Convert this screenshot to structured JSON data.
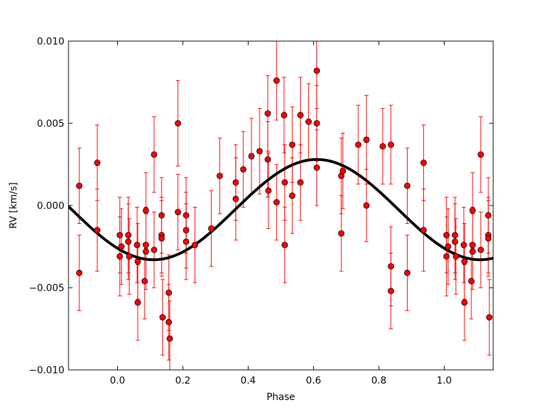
{
  "chart_data": {
    "type": "scatter",
    "title": "",
    "xlabel": "Phase",
    "ylabel": "RV [km/s]",
    "xlim": [
      -0.15,
      1.15
    ],
    "ylim": [
      -0.01,
      0.01
    ],
    "xticks": [
      0.0,
      0.2,
      0.4,
      0.6,
      0.8,
      1.0
    ],
    "xtick_labels": [
      "0.0",
      "0.2",
      "0.4",
      "0.6",
      "0.8",
      "1.0"
    ],
    "yticks": [
      -0.01,
      -0.005,
      0.0,
      0.005,
      0.01
    ],
    "ytick_labels": [
      "−0.010",
      "−0.005",
      "0.000",
      "0.005",
      "0.010"
    ],
    "grid": false,
    "colors": {
      "points": "#ff0000",
      "errorbars": "#ff0000",
      "model": "#000000"
    },
    "model_curve": {
      "description": "sinusoidal fit",
      "offset": -0.00025,
      "amplitude": 0.00305,
      "peak_phase": 0.61
    },
    "points": [
      {
        "x": -0.117,
        "y": 0.0012,
        "err": 0.0023
      },
      {
        "x": -0.117,
        "y": -0.0041,
        "err": 0.0023
      },
      {
        "x": -0.062,
        "y": 0.0026,
        "err": 0.0023
      },
      {
        "x": -0.062,
        "y": -0.0015,
        "err": 0.0025
      },
      {
        "x": 0.007,
        "y": -0.0018,
        "err": 0.0023
      },
      {
        "x": 0.007,
        "y": -0.0031,
        "err": 0.0024
      },
      {
        "x": 0.012,
        "y": -0.0025,
        "err": 0.0023
      },
      {
        "x": 0.033,
        "y": -0.0018,
        "err": 0.0023
      },
      {
        "x": 0.033,
        "y": -0.0022,
        "err": 0.0023
      },
      {
        "x": 0.036,
        "y": -0.0031,
        "err": 0.0023
      },
      {
        "x": 0.06,
        "y": -0.0024,
        "err": 0.0023
      },
      {
        "x": 0.062,
        "y": -0.0034,
        "err": 0.0023
      },
      {
        "x": 0.062,
        "y": -0.0059,
        "err": 0.0023
      },
      {
        "x": 0.083,
        "y": -0.0046,
        "err": 0.0023
      },
      {
        "x": 0.087,
        "y": -0.0003,
        "err": 0.0023
      },
      {
        "x": 0.087,
        "y": -0.0024,
        "err": 0.0023
      },
      {
        "x": 0.087,
        "y": -0.0028,
        "err": 0.0023
      },
      {
        "x": 0.112,
        "y": 0.0031,
        "err": 0.0023
      },
      {
        "x": 0.112,
        "y": -0.0027,
        "err": 0.0023
      },
      {
        "x": 0.135,
        "y": -0.0006,
        "err": 0.0023
      },
      {
        "x": 0.135,
        "y": -0.0018,
        "err": 0.0023
      },
      {
        "x": 0.135,
        "y": -0.002,
        "err": 0.0023
      },
      {
        "x": 0.138,
        "y": -0.0068,
        "err": 0.0023
      },
      {
        "x": 0.157,
        "y": -0.0053,
        "err": 0.0023
      },
      {
        "x": 0.157,
        "y": -0.0071,
        "err": 0.0023
      },
      {
        "x": 0.16,
        "y": -0.0081,
        "err": 0.0023
      },
      {
        "x": 0.185,
        "y": 0.005,
        "err": 0.0026
      },
      {
        "x": 0.185,
        "y": -0.0004,
        "err": 0.0023
      },
      {
        "x": 0.21,
        "y": -0.0006,
        "err": 0.0023
      },
      {
        "x": 0.21,
        "y": -0.0015,
        "err": 0.0023
      },
      {
        "x": 0.21,
        "y": -0.0022,
        "err": 0.0023
      },
      {
        "x": 0.237,
        "y": -0.0024,
        "err": 0.0023
      },
      {
        "x": 0.287,
        "y": -0.0014,
        "err": 0.0023
      },
      {
        "x": 0.313,
        "y": 0.0018,
        "err": 0.0023
      },
      {
        "x": 0.362,
        "y": 0.0014,
        "err": 0.0023
      },
      {
        "x": 0.362,
        "y": 0.0004,
        "err": 0.0025
      },
      {
        "x": 0.385,
        "y": 0.0022,
        "err": 0.0023
      },
      {
        "x": 0.41,
        "y": 0.003,
        "err": 0.0023
      },
      {
        "x": 0.435,
        "y": 0.0033,
        "err": 0.0026
      },
      {
        "x": 0.46,
        "y": 0.0056,
        "err": 0.0023
      },
      {
        "x": 0.46,
        "y": 0.0028,
        "err": 0.0023
      },
      {
        "x": 0.462,
        "y": 0.0009,
        "err": 0.0023
      },
      {
        "x": 0.487,
        "y": 0.0076,
        "err": 0.0024
      },
      {
        "x": 0.487,
        "y": 0.0002,
        "err": 0.0023
      },
      {
        "x": 0.51,
        "y": 0.0055,
        "err": 0.0023
      },
      {
        "x": 0.512,
        "y": 0.0014,
        "err": 0.0023
      },
      {
        "x": 0.512,
        "y": -0.0024,
        "err": 0.0023
      },
      {
        "x": 0.535,
        "y": 0.0037,
        "err": 0.0023
      },
      {
        "x": 0.535,
        "y": 0.0006,
        "err": 0.0023
      },
      {
        "x": 0.56,
        "y": 0.0055,
        "err": 0.0023
      },
      {
        "x": 0.56,
        "y": 0.0014,
        "err": 0.0023
      },
      {
        "x": 0.585,
        "y": 0.0051,
        "err": 0.0023
      },
      {
        "x": 0.61,
        "y": 0.0082,
        "err": 0.0023
      },
      {
        "x": 0.61,
        "y": 0.005,
        "err": 0.0023
      },
      {
        "x": 0.61,
        "y": 0.0023,
        "err": 0.0023
      },
      {
        "x": 0.685,
        "y": 0.0018,
        "err": 0.0023
      },
      {
        "x": 0.685,
        "y": -0.0017,
        "err": 0.0023
      },
      {
        "x": 0.69,
        "y": 0.0021,
        "err": 0.0023
      },
      {
        "x": 0.737,
        "y": 0.0037,
        "err": 0.0024
      },
      {
        "x": 0.762,
        "y": 0.004,
        "err": 0.0027
      },
      {
        "x": 0.762,
        "y": 0.0,
        "err": 0.0022
      },
      {
        "x": 0.812,
        "y": 0.0036,
        "err": 0.0023
      },
      {
        "x": 0.837,
        "y": 0.0037,
        "err": 0.0024
      },
      {
        "x": 0.837,
        "y": -0.0037,
        "err": 0.0024
      },
      {
        "x": 0.837,
        "y": -0.0052,
        "err": 0.0023
      },
      {
        "x": 0.887,
        "y": 0.0012,
        "err": 0.0023
      },
      {
        "x": 0.887,
        "y": -0.0041,
        "err": 0.0023
      },
      {
        "x": 0.937,
        "y": 0.0026,
        "err": 0.0023
      },
      {
        "x": 0.937,
        "y": -0.0015,
        "err": 0.0025
      },
      {
        "x": 1.007,
        "y": -0.0018,
        "err": 0.0023
      },
      {
        "x": 1.007,
        "y": -0.0031,
        "err": 0.0024
      },
      {
        "x": 1.012,
        "y": -0.0025,
        "err": 0.0023
      },
      {
        "x": 1.033,
        "y": -0.0018,
        "err": 0.0023
      },
      {
        "x": 1.033,
        "y": -0.0022,
        "err": 0.0023
      },
      {
        "x": 1.036,
        "y": -0.0031,
        "err": 0.0023
      },
      {
        "x": 1.06,
        "y": -0.0024,
        "err": 0.0023
      },
      {
        "x": 1.062,
        "y": -0.0034,
        "err": 0.0023
      },
      {
        "x": 1.062,
        "y": -0.0059,
        "err": 0.0023
      },
      {
        "x": 1.083,
        "y": -0.0046,
        "err": 0.0023
      },
      {
        "x": 1.087,
        "y": -0.0003,
        "err": 0.0023
      },
      {
        "x": 1.087,
        "y": -0.0024,
        "err": 0.0023
      },
      {
        "x": 1.087,
        "y": -0.0028,
        "err": 0.0023
      },
      {
        "x": 1.112,
        "y": 0.0031,
        "err": 0.0023
      },
      {
        "x": 1.112,
        "y": -0.0027,
        "err": 0.0023
      },
      {
        "x": 1.135,
        "y": -0.0006,
        "err": 0.0023
      },
      {
        "x": 1.135,
        "y": -0.0018,
        "err": 0.0023
      },
      {
        "x": 1.135,
        "y": -0.002,
        "err": 0.0023
      },
      {
        "x": 1.138,
        "y": -0.0068,
        "err": 0.0023
      }
    ]
  }
}
